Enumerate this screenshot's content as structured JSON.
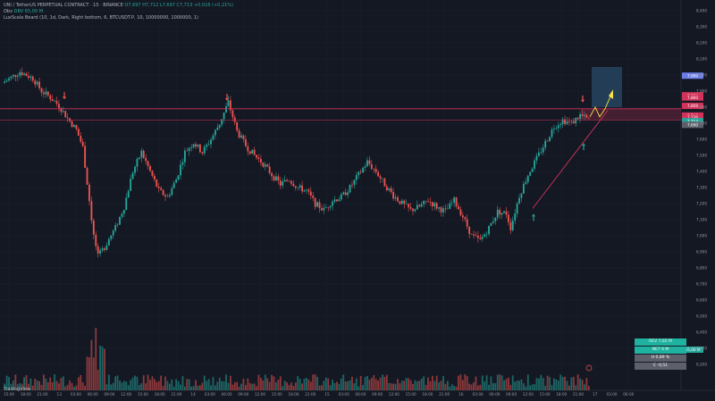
{
  "header": {
    "title": "UNI / TetherUS PERPETUAL CONTRACT · 15 · BINANCE",
    "ohlc": "O7,697 H7,712 L7,697 C7,713 +0,016 (+0,21%)",
    "obv_label": "Obv",
    "obv_value": "DBV 65,00 M",
    "indicator": "LuxScala Beard (10, 1d, Dark, Right bottom, 6, BTCUSDT.P, 10, 10000000, 1000000, 1)"
  },
  "logo": "TradingView",
  "price_axis": {
    "labels": [
      "8,400",
      "8,300",
      "8,200",
      "8,100",
      "8,000",
      "7,900",
      "7,800",
      "7,700",
      "7,600",
      "7,500",
      "7,400",
      "7,300",
      "7,200",
      "7,100",
      "7,000",
      "6,900",
      "6,800",
      "6,700",
      "6,600",
      "6,500",
      "6,400",
      "6,300",
      "6,200"
    ],
    "tags": [
      {
        "text": "7,996",
        "color": "#6b7ee8"
      },
      {
        "text": "7,874",
        "color": "#d2335a"
      },
      {
        "text": "7,860",
        "color": "#d2335a"
      },
      {
        "text": "7,808",
        "color": "#d2335a"
      },
      {
        "text": "7,748",
        "color": "#d2335a"
      },
      {
        "text": "7,736",
        "color": "#d2335a"
      },
      {
        "text": "7,713",
        "color": "#26a69a"
      },
      {
        "text": "7,690",
        "color": "#5d606b"
      }
    ],
    "bottom_tag": "65,00 M"
  },
  "time_axis": {
    "labels": [
      "15:00",
      "18:00",
      "21:00",
      "13",
      "03:00",
      "06:00",
      "09:00",
      "12:00",
      "15:00",
      "18:00",
      "21:00",
      "14",
      "03:00",
      "06:00",
      "09:00",
      "12:00",
      "15:00",
      "18:00",
      "21:00",
      "15",
      "03:00",
      "06:00",
      "09:00",
      "12:00",
      "15:00",
      "18:00",
      "21:00",
      "16",
      "03:00",
      "06:00",
      "09:00",
      "12:00",
      "15:00",
      "18:00",
      "21:00",
      "17",
      "03:00",
      "06:00"
    ]
  },
  "levels": {
    "resistance": 7.79,
    "support": 7.72
  },
  "colors": {
    "bull": "#26a69a",
    "bear": "#ef5350",
    "level": "#d2335a",
    "background": "#141823",
    "target_box": "#2a4a6a",
    "arrow": "#f3e24b"
  },
  "info_box": {
    "row1": "REV 7,65 M",
    "row2": "NET 6 M",
    "row3": "H 0,89 %",
    "row4": "C -0,51"
  }
}
